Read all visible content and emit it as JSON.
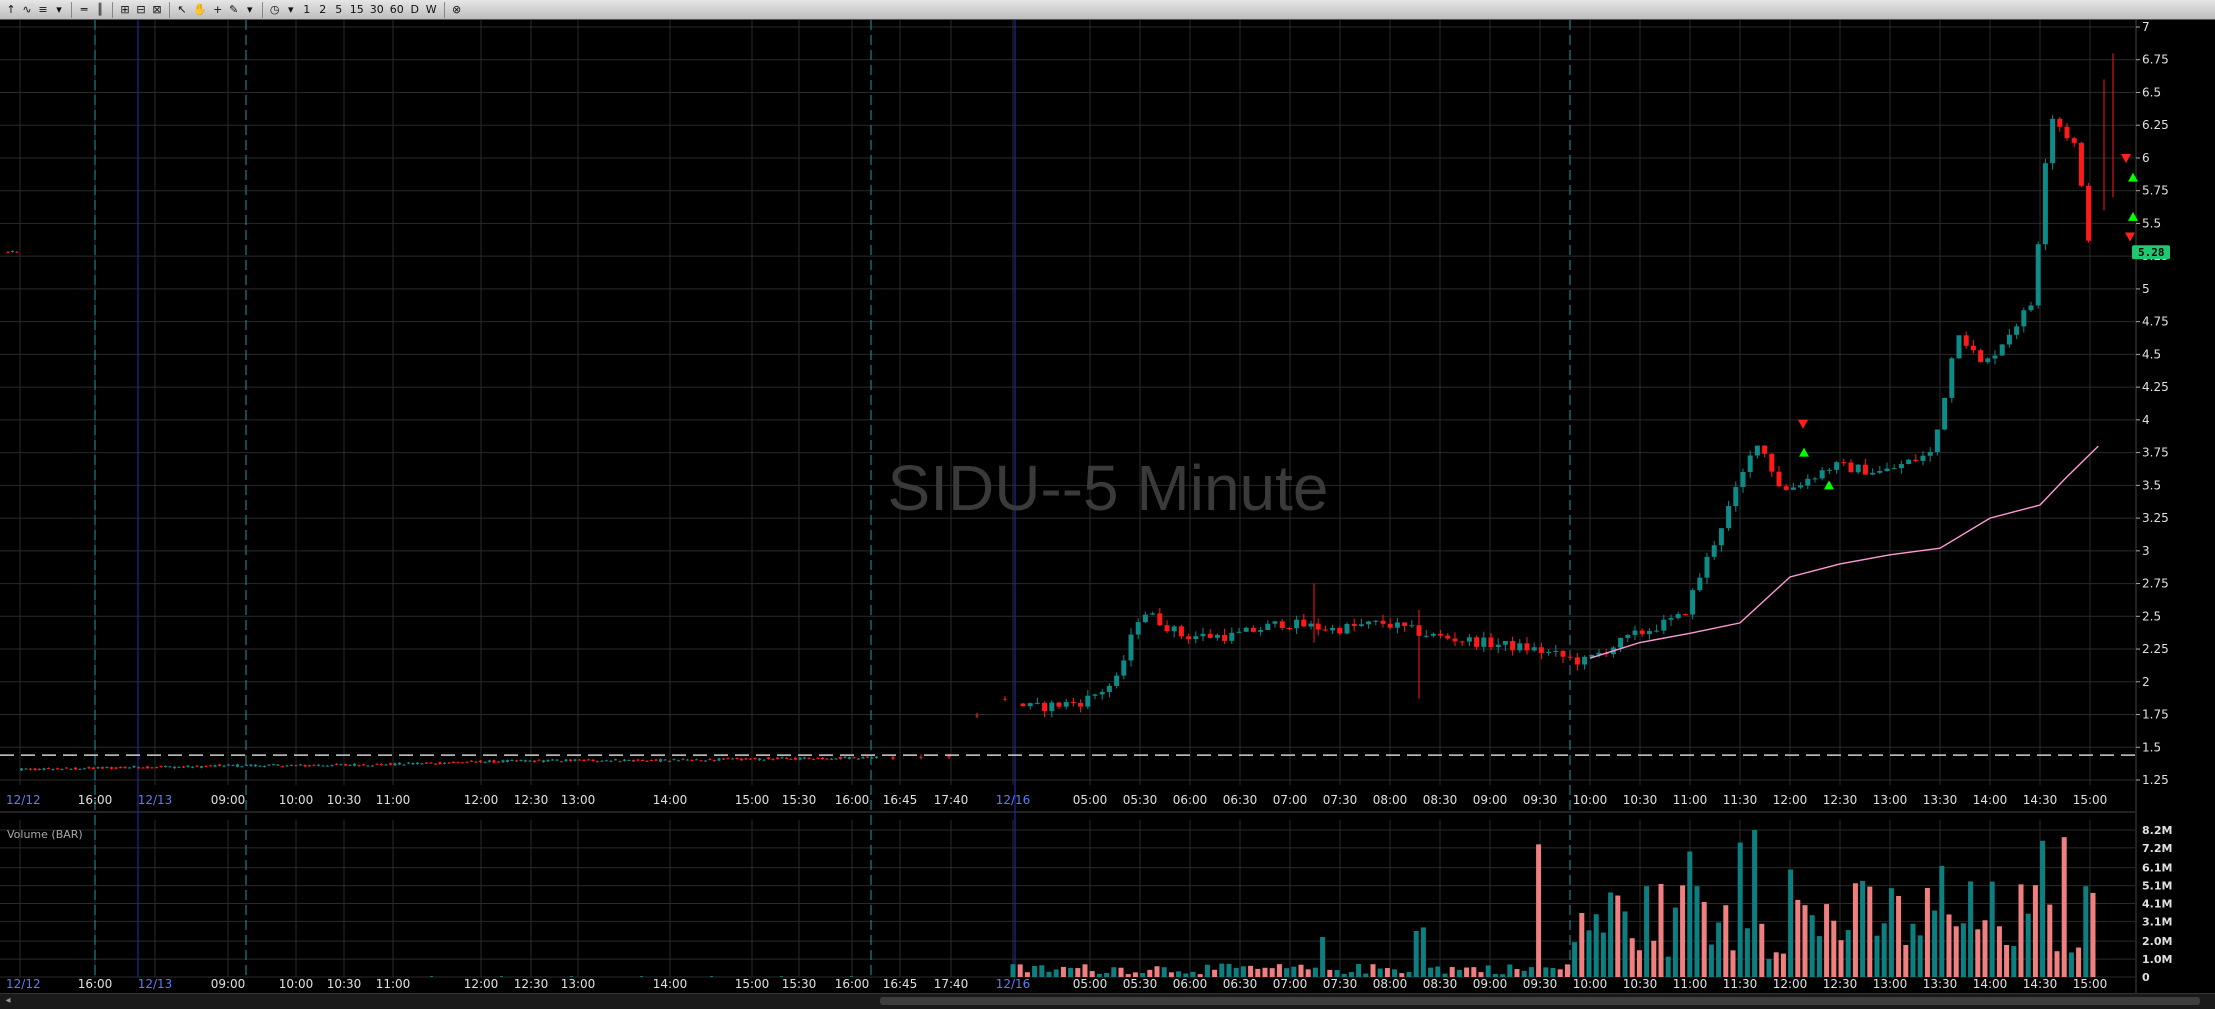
{
  "toolbar": {
    "interval_buttons": [
      "1",
      "2",
      "5",
      "15",
      "30",
      "60",
      "D",
      "W"
    ]
  },
  "chart": {
    "watermark": "SIDU--5 Minute",
    "last_price_label": "5.28",
    "volume_panel_label": "Volume (BAR)",
    "colors": {
      "background": "#000000",
      "grid": "#2a2a2a",
      "up_candle": "#0e8a87",
      "down_candle": "#ff1a1a",
      "volume_up": "#0e7f80",
      "volume_down": "#f08080",
      "moving_average": "#ff9ad5",
      "session_divider": "#1a7f86",
      "day_divider": "#1b2a9a",
      "dashed_level": "#d0d0d0",
      "axis_text": "#e0e0e0",
      "date_text": "#5b7cff",
      "buy_marker": "#00ff00",
      "sell_marker": "#ff2020",
      "last_price_bg": "#1fc870"
    }
  },
  "chart_data": {
    "type": "candlestick",
    "title": "SIDU--5 Minute",
    "symbol": "SIDU",
    "interval": "5 Minute",
    "price_axis": {
      "ylim": [
        1.25,
        7
      ],
      "ticks": [
        "7",
        "6.75",
        "6.5",
        "6.25",
        "6",
        "5.75",
        "5.5",
        "5.25",
        "5",
        "4.75",
        "4.5",
        "4.25",
        "4",
        "3.75",
        "3.5",
        "3.25",
        "3",
        "2.75",
        "2.5",
        "2.25",
        "2",
        "1.75",
        "1.5",
        "1.25"
      ]
    },
    "time_axis_labels": [
      "12/12",
      "16:00",
      "12/13",
      "09:00",
      "10:00",
      "10:30",
      "11:00",
      "12:00",
      "12:30",
      "13:00",
      "14:00",
      "15:00",
      "15:30",
      "16:00",
      "16:45",
      "17:40",
      "12/16",
      "05:00",
      "05:30",
      "06:00",
      "06:30",
      "07:00",
      "07:30",
      "08:00",
      "08:30",
      "09:00",
      "09:30",
      "10:00",
      "10:30",
      "11:00",
      "11:30",
      "12:00",
      "12:30",
      "13:00",
      "13:30",
      "14:00",
      "14:30",
      "15:00"
    ],
    "date_labels": [
      "12/12",
      "12/13",
      "12/16"
    ],
    "dashed_level": 1.44,
    "last_price": 5.28,
    "volume_axis": {
      "ylim": [
        0,
        8.2
      ],
      "unit": "M",
      "ticks": [
        "8.2M",
        "7.2M",
        "6.1M",
        "5.1M",
        "4.1M",
        "3.1M",
        "2.0M",
        "1.0M",
        "0"
      ]
    },
    "series": [
      {
        "name": "Price",
        "points": [
          [
            "12/12 15:30",
            1.33
          ],
          [
            "12/12 16:00",
            1.34
          ],
          [
            "12/12 18:00",
            1.35
          ],
          [
            "12/13 04:00",
            1.35
          ],
          [
            "12/13 09:00",
            1.36
          ],
          [
            "12/13 10:00",
            1.36
          ],
          [
            "12/13 11:00",
            1.37
          ],
          [
            "12/13 12:00",
            1.39
          ],
          [
            "12/13 13:00",
            1.4
          ],
          [
            "12/13 14:00",
            1.4
          ],
          [
            "12/13 15:00",
            1.41
          ],
          [
            "12/13 16:00",
            1.42
          ],
          [
            "12/13 17:40",
            1.43
          ],
          [
            "12/16 04:00",
            1.9
          ],
          [
            "12/16 04:30",
            1.8
          ],
          [
            "12/16 05:00",
            1.85
          ],
          [
            "12/16 05:20",
            2.0
          ],
          [
            "12/16 05:35",
            2.55
          ],
          [
            "12/16 06:00",
            2.35
          ],
          [
            "12/16 06:30",
            2.35
          ],
          [
            "12/16 07:00",
            2.45
          ],
          [
            "12/16 07:30",
            2.4
          ],
          [
            "12/16 08:00",
            2.45
          ],
          [
            "12/16 08:30",
            2.35
          ],
          [
            "12/16 09:00",
            2.3
          ],
          [
            "12/16 09:30",
            2.25
          ],
          [
            "12/16 10:00",
            2.15
          ],
          [
            "12/16 10:30",
            2.35
          ],
          [
            "12/16 11:00",
            2.5
          ],
          [
            "12/16 11:30",
            3.4
          ],
          [
            "12/16 11:45",
            3.85
          ],
          [
            "12/16 12:00",
            3.45
          ],
          [
            "12/16 12:30",
            3.65
          ],
          [
            "12/16 13:00",
            3.6
          ],
          [
            "12/16 13:30",
            3.75
          ],
          [
            "12/16 13:45",
            4.7
          ],
          [
            "12/16 14:00",
            4.4
          ],
          [
            "12/16 14:30",
            4.9
          ],
          [
            "12/16 14:40",
            6.35
          ],
          [
            "12/16 14:55",
            6.1
          ],
          [
            "12/16 15:05",
            5.28
          ]
        ]
      },
      {
        "name": "Moving Average",
        "points": [
          [
            "12/16 10:00",
            2.18
          ],
          [
            "12/16 10:30",
            2.3
          ],
          [
            "12/16 11:00",
            2.37
          ],
          [
            "12/16 11:30",
            2.45
          ],
          [
            "12/16 12:00",
            2.8
          ],
          [
            "12/16 12:30",
            2.9
          ],
          [
            "12/16 13:00",
            2.97
          ],
          [
            "12/16 13:30",
            3.02
          ],
          [
            "12/16 14:00",
            3.25
          ],
          [
            "12/16 14:30",
            3.35
          ],
          [
            "12/16 14:45",
            3.55
          ],
          [
            "12/16 15:05",
            3.8
          ]
        ]
      }
    ],
    "volume": [
      {
        "time": "09:30",
        "value": 7.4
      },
      {
        "time": "10:00",
        "value": 2.6
      },
      {
        "time": "11:00",
        "value": 7.0
      },
      {
        "time": "11:30",
        "value": 7.5
      },
      {
        "time": "11:40",
        "value": 8.2
      },
      {
        "time": "12:00",
        "value": 6.0
      },
      {
        "time": "13:30",
        "value": 6.2
      },
      {
        "time": "14:30",
        "value": 7.6
      },
      {
        "time": "14:45",
        "value": 7.8
      }
    ]
  }
}
